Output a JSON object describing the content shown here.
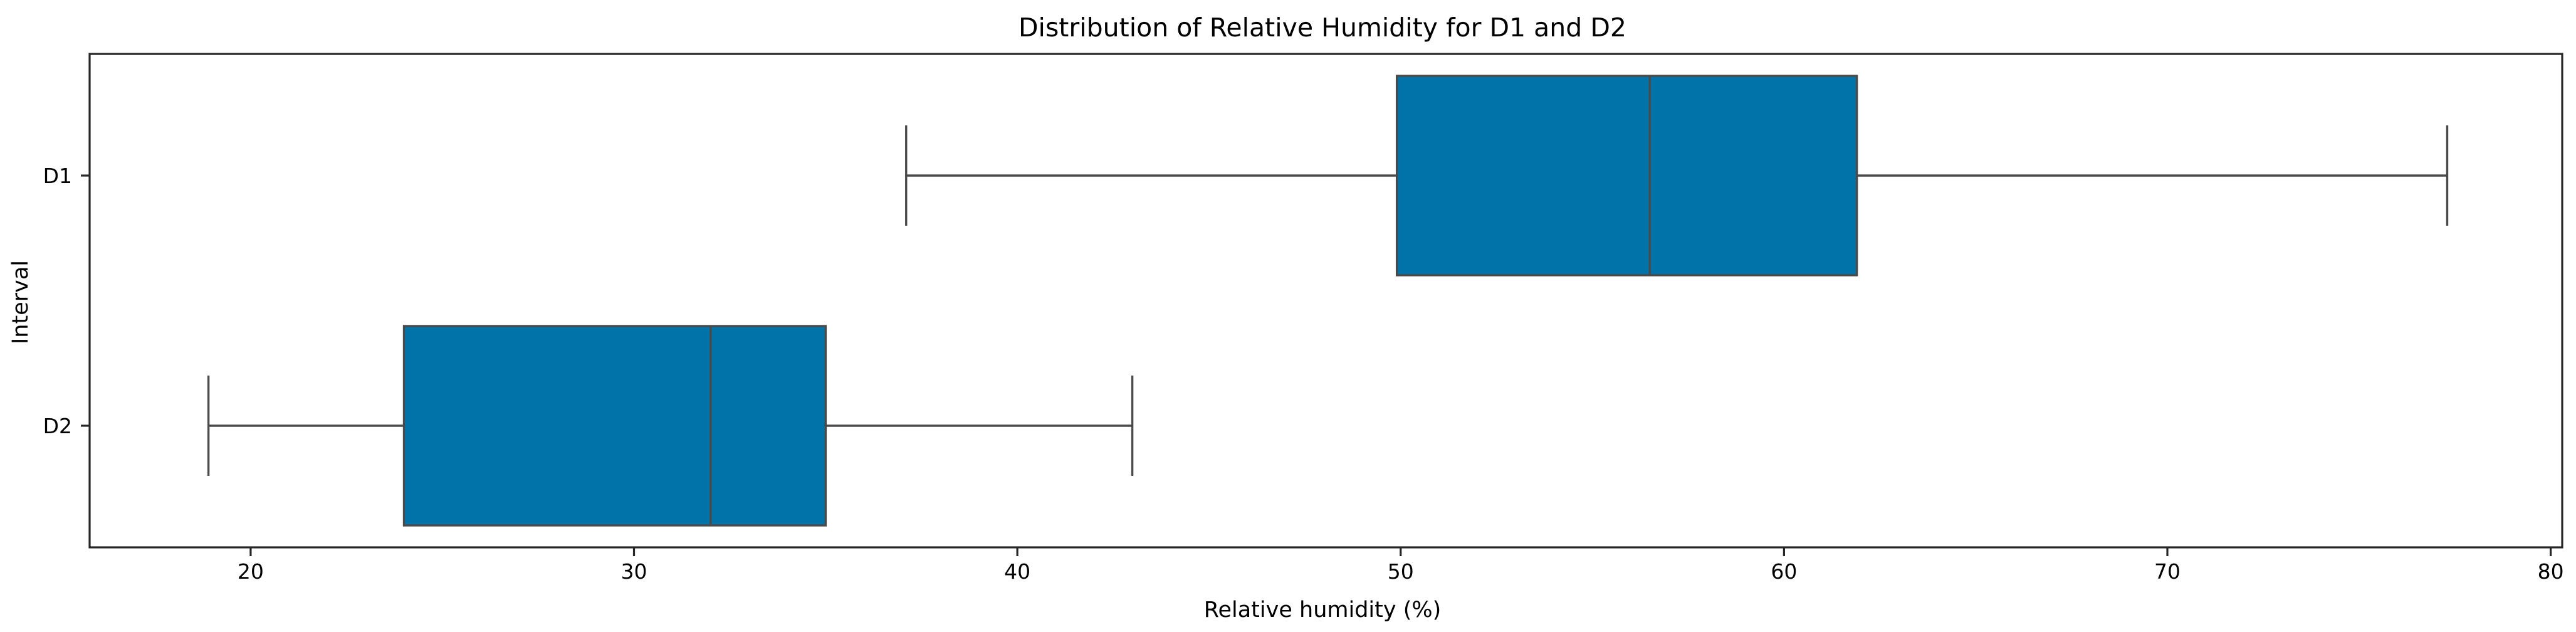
{
  "chart_data": {
    "type": "box",
    "orientation": "horizontal",
    "title": "Distribution of Relative Humidity for D1 and D2",
    "xlabel": "Relative humidity (%)",
    "ylabel": "Interval",
    "xlim": [
      15.8,
      80.3
    ],
    "xticks": [
      20,
      30,
      40,
      50,
      60,
      70,
      80
    ],
    "categories": [
      "D1",
      "D2"
    ],
    "box_color": "#0173a8",
    "line_color": "#4a4a4a",
    "boxes": [
      {
        "label": "D1",
        "whisker_low": 37.1,
        "q1": 49.9,
        "median": 56.5,
        "q3": 61.9,
        "whisker_high": 77.3
      },
      {
        "label": "D2",
        "whisker_low": 18.9,
        "q1": 24.0,
        "median": 32.0,
        "q3": 35.0,
        "whisker_high": 43.0
      }
    ]
  }
}
